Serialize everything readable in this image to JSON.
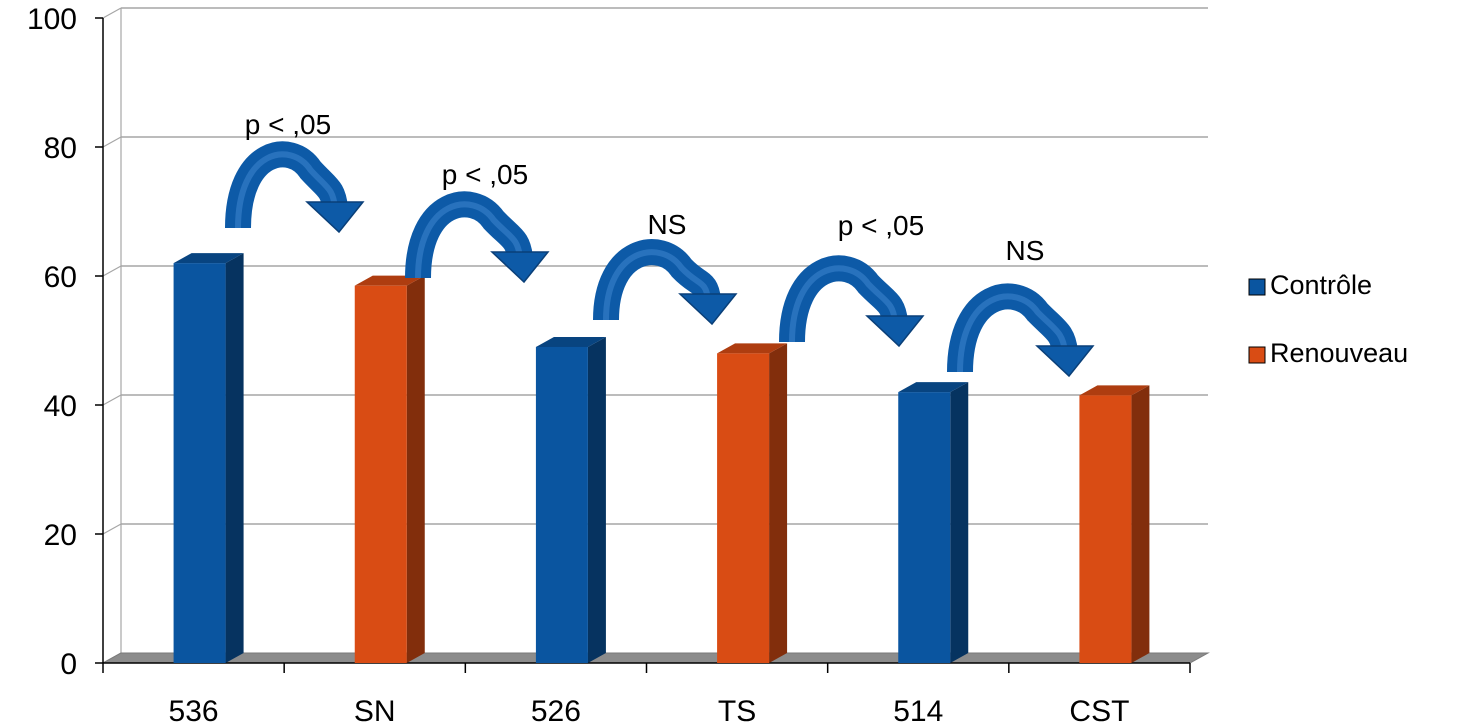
{
  "chart_data": {
    "type": "bar",
    "categories": [
      "536",
      "SN",
      "526",
      "TS",
      "514",
      "CST"
    ],
    "series": [
      {
        "name": "Contrôle",
        "color": "#0a55a0",
        "values": [
          62,
          null,
          49,
          null,
          42,
          null
        ]
      },
      {
        "name": "Renouveau",
        "color": "#d94c14",
        "values": [
          null,
          58.5,
          null,
          48,
          null,
          41.5
        ]
      }
    ],
    "ylim": [
      0,
      100
    ],
    "yticks": [
      0,
      20,
      40,
      60,
      80,
      100
    ],
    "grid": true,
    "legend_position": "right",
    "annotations": [
      {
        "text": "p < ,05",
        "from": "536",
        "to": "SN"
      },
      {
        "text": "p < ,05",
        "from": "SN",
        "to": "526"
      },
      {
        "text": "NS",
        "from": "526",
        "to": "TS"
      },
      {
        "text": "p < ,05",
        "from": "TS",
        "to": "514"
      },
      {
        "text": "NS",
        "from": "514",
        "to": "CST"
      }
    ]
  }
}
